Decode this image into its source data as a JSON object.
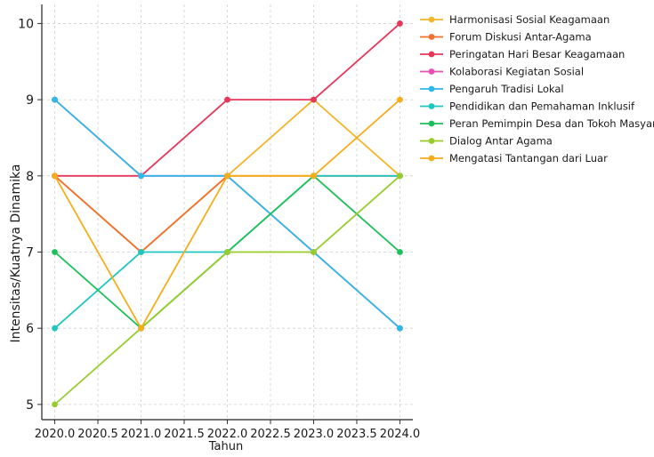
{
  "chart_data": {
    "type": "line",
    "title": "",
    "xlabel": "Tahun",
    "ylabel": "Intensitas/Kuatnya Dinamika",
    "x": [
      2020,
      2021,
      2022,
      2023,
      2024
    ],
    "xlim": [
      2019.85,
      2024.15
    ],
    "ylim": [
      4.8,
      10.25
    ],
    "xticks": [
      "2020.0",
      "2020.5",
      "2021.0",
      "2021.5",
      "2022.0",
      "2022.5",
      "2023.0",
      "2023.5",
      "2024.0"
    ],
    "yticks": [
      "5",
      "6",
      "7",
      "8",
      "9",
      "10"
    ],
    "grid": true,
    "legend_position": "top-right",
    "series": [
      {
        "name": "Harmonisasi Sosial Keagamaan",
        "color": "#f3b52a",
        "values": [
          8,
          7,
          8,
          9,
          8
        ]
      },
      {
        "name": "Forum Diskusi Antar-Agama",
        "color": "#f07030",
        "values": [
          8,
          7,
          8,
          8,
          8
        ]
      },
      {
        "name": "Peringatan Hari Besar Keagamaan",
        "color": "#e8365a",
        "values": [
          8,
          8,
          9,
          9,
          10
        ]
      },
      {
        "name": "Kolaborasi Kegiatan Sosial",
        "color": "#ea4fb0",
        "values": [
          9,
          8,
          8,
          7,
          6
        ]
      },
      {
        "name": "Pengaruh Tradisi Lokal",
        "color": "#2fb8e8",
        "values": [
          9,
          8,
          8,
          7,
          6
        ]
      },
      {
        "name": "Pendidikan dan Pemahaman Inklusif",
        "color": "#1dc7c0",
        "values": [
          6,
          7,
          7,
          8,
          8
        ]
      },
      {
        "name": "Peran Pemimpin Desa dan Tokoh Masyarakat",
        "color": "#1fbf5a",
        "values": [
          7,
          6,
          7,
          8,
          7
        ]
      },
      {
        "name": "Dialog Antar Agama",
        "color": "#98cc2e",
        "values": [
          5,
          6,
          7,
          7,
          8
        ]
      },
      {
        "name": "Mengatasi Tantangan dari Luar",
        "color": "#f5ad1a",
        "values": [
          8,
          6,
          8,
          8,
          9
        ]
      }
    ]
  }
}
